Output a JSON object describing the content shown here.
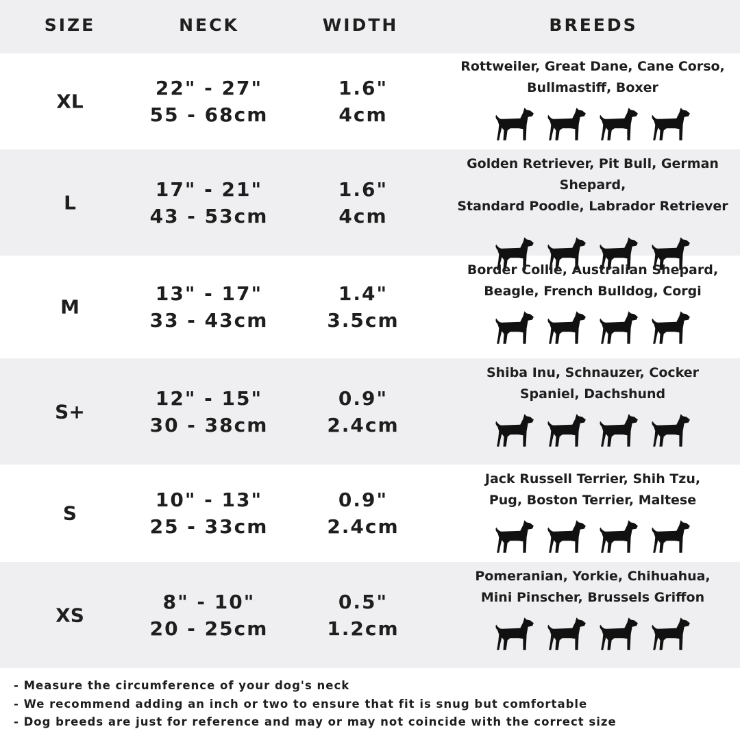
{
  "header": {
    "size": "SIZE",
    "neck": "NECK",
    "width": "WIDTH",
    "breeds": "BREEDS"
  },
  "rows": [
    {
      "size": "XL",
      "neck_in": "22\" - 27\"",
      "neck_cm": "55 - 68cm",
      "width_in": "1.6\"",
      "width_cm": "4cm",
      "breeds_lines": [
        "Rottweiler, Great Dane, Cane Corso,",
        "Bullmastiff, Boxer"
      ],
      "icons": [
        "rottweiler-icon",
        "great-dane-icon",
        "cane-corso-icon",
        "bullmastiff-icon"
      ]
    },
    {
      "size": "L",
      "neck_in": "17\" - 21\"",
      "neck_cm": "43 - 53cm",
      "width_in": "1.6\"",
      "width_cm": "4cm",
      "breeds_lines": [
        "Golden Retriever, Pit Bull, German Shepard,",
        "Standard Poodle, Labrador Retriever"
      ],
      "icons": [
        "golden-retriever-icon",
        "labrador-icon",
        "poodle-icon",
        "german-shepard-icon"
      ]
    },
    {
      "size": "M",
      "neck_in": "13\" - 17\"",
      "neck_cm": "33 - 43cm",
      "width_in": "1.4\"",
      "width_cm": "3.5cm",
      "breeds_lines": [
        "Border Collie, Australian Shepard,",
        "Beagle, French Bulldog, Corgi"
      ],
      "icons": [
        "border-collie-icon",
        "beagle-icon",
        "french-bulldog-icon",
        "corgi-icon"
      ]
    },
    {
      "size": "S+",
      "neck_in": "12\" - 15\"",
      "neck_cm": "30 - 38cm",
      "width_in": "0.9\"",
      "width_cm": "2.4cm",
      "breeds_lines": [
        "Shiba Inu, Schnauzer, Cocker",
        "Spaniel, Dachshund"
      ],
      "icons": [
        "shiba-inu-icon",
        "schnauzer-icon",
        "cocker-spaniel-icon",
        "dachshund-icon"
      ]
    },
    {
      "size": "S",
      "neck_in": "10\" - 13\"",
      "neck_cm": "25 - 33cm",
      "width_in": "0.9\"",
      "width_cm": "2.4cm",
      "breeds_lines": [
        "Jack Russell Terrier, Shih Tzu,",
        "Pug, Boston Terrier, Maltese"
      ],
      "icons": [
        "jack-russell-icon",
        "shih-tzu-icon",
        "pug-icon",
        "maltese-icon"
      ]
    },
    {
      "size": "XS",
      "neck_in": "8\" - 10\"",
      "neck_cm": "20 - 25cm",
      "width_in": "0.5\"",
      "width_cm": "1.2cm",
      "breeds_lines": [
        "Pomeranian, Yorkie, Chihuahua,",
        "Mini Pinscher, Brussels Griffon"
      ],
      "icons": [
        "pomeranian-icon",
        "yorkie-icon",
        "chihuahua-icon",
        "mini-pinscher-icon"
      ]
    }
  ],
  "notes": [
    "- Measure the circumference of your dog's neck",
    "- We recommend adding an inch or two to ensure that fit is snug but comfortable",
    "- Dog breeds are just for reference and may or may not coincide with the correct size"
  ],
  "colors": {
    "row_alt": "#efeff1",
    "text": "#1e1e1e"
  }
}
